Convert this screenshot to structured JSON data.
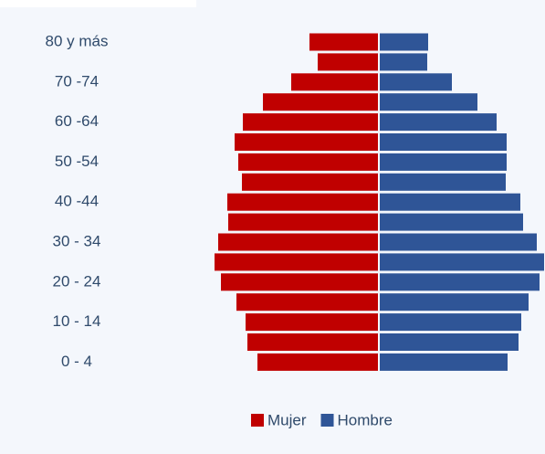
{
  "chart_data": {
    "type": "pyramid",
    "categories": [
      "80 y más",
      null,
      "70 -74",
      null,
      "60 -64",
      null,
      "50 -54",
      null,
      "40 -44",
      null,
      "30 - 34",
      null,
      "20 - 24",
      null,
      "10 - 14",
      null,
      "0 - 4"
    ],
    "series": [
      {
        "name": "Mujer",
        "color": "#c00000",
        "values": [
          75,
          66,
          95,
          126,
          148,
          157,
          153,
          149,
          165,
          164,
          175,
          179,
          172,
          155,
          145,
          143,
          132
        ]
      },
      {
        "name": "Hombre",
        "color": "#2f5597",
        "values": [
          53,
          52,
          79,
          107,
          128,
          139,
          139,
          138,
          154,
          157,
          172,
          180,
          175,
          163,
          155,
          152,
          140
        ]
      }
    ]
  }
}
